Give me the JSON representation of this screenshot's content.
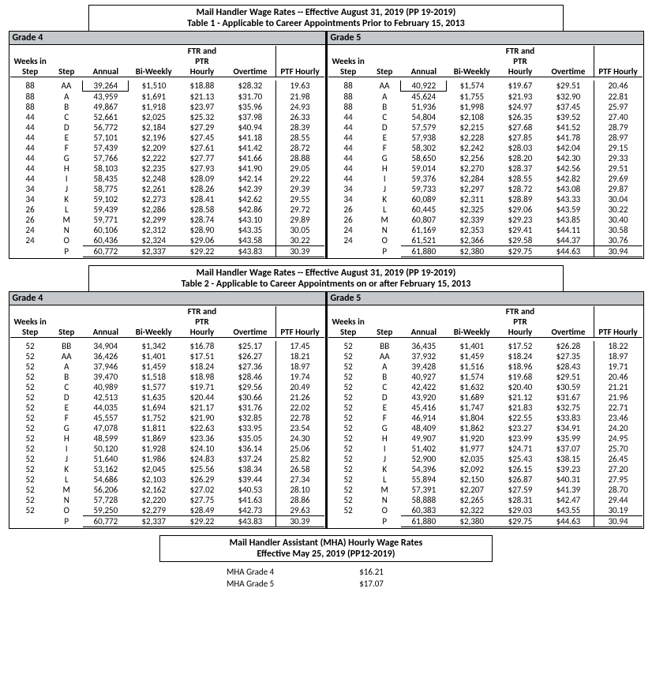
{
  "table1": {
    "title1": "Mail Handler Wage Rates -- Effective August 31, 2019 (PP 19-2019)",
    "title2": "Table 1 - Applicable to Career Appointments Prior to February 15, 2013",
    "cols": {
      "weeks": "Weeks in Step",
      "step": "Step",
      "annual": "Annual",
      "biweekly": "Bi-Weekly",
      "hourly": "FTR and PTR Hourly",
      "overtime": "Overtime",
      "ptf": "PTF Hourly"
    },
    "grade4": {
      "label": "Grade 4",
      "rows": [
        {
          "w": "88",
          "s": "AA",
          "a": "39,264",
          "b": "$1,510",
          "h": "$18.88",
          "o": "$28.32",
          "p": "19.63"
        },
        {
          "w": "88",
          "s": "A",
          "a": "43,959",
          "b": "$1,691",
          "h": "$21.13",
          "o": "$31.70",
          "p": "21.98"
        },
        {
          "w": "88",
          "s": "B",
          "a": "49,867",
          "b": "$1,918",
          "h": "$23.97",
          "o": "$35.96",
          "p": "24.93"
        },
        {
          "w": "44",
          "s": "C",
          "a": "52,661",
          "b": "$2,025",
          "h": "$25.32",
          "o": "$37.98",
          "p": "26.33"
        },
        {
          "w": "44",
          "s": "D",
          "a": "56,772",
          "b": "$2,184",
          "h": "$27.29",
          "o": "$40.94",
          "p": "28.39"
        },
        {
          "w": "44",
          "s": "E",
          "a": "57,101",
          "b": "$2,196",
          "h": "$27.45",
          "o": "$41.18",
          "p": "28.55"
        },
        {
          "w": "44",
          "s": "F",
          "a": "57,439",
          "b": "$2,209",
          "h": "$27.61",
          "o": "$41.42",
          "p": "28.72"
        },
        {
          "w": "44",
          "s": "G",
          "a": "57,766",
          "b": "$2,222",
          "h": "$27.77",
          "o": "$41.66",
          "p": "28.88"
        },
        {
          "w": "44",
          "s": "H",
          "a": "58,103",
          "b": "$2,235",
          "h": "$27.93",
          "o": "$41.90",
          "p": "29.05"
        },
        {
          "w": "44",
          "s": "I",
          "a": "58,435",
          "b": "$2,248",
          "h": "$28.09",
          "o": "$42.14",
          "p": "29.22"
        },
        {
          "w": "34",
          "s": "J",
          "a": "58,775",
          "b": "$2,261",
          "h": "$28.26",
          "o": "$42.39",
          "p": "29.39"
        },
        {
          "w": "34",
          "s": "K",
          "a": "59,102",
          "b": "$2,273",
          "h": "$28.41",
          "o": "$42.62",
          "p": "29.55"
        },
        {
          "w": "26",
          "s": "L",
          "a": "59,439",
          "b": "$2,286",
          "h": "$28.58",
          "o": "$42.86",
          "p": "29.72"
        },
        {
          "w": "26",
          "s": "M",
          "a": "59,771",
          "b": "$2,299",
          "h": "$28.74",
          "o": "$43.10",
          "p": "29.89"
        },
        {
          "w": "24",
          "s": "N",
          "a": "60,106",
          "b": "$2,312",
          "h": "$28.90",
          "o": "$43.35",
          "p": "30.05"
        },
        {
          "w": "24",
          "s": "O",
          "a": "60,436",
          "b": "$2,324",
          "h": "$29.06",
          "o": "$43.58",
          "p": "30.22"
        },
        {
          "w": "",
          "s": "P",
          "a": "60,772",
          "b": "$2,337",
          "h": "$29.22",
          "o": "$43.83",
          "p": "30.39"
        }
      ]
    },
    "grade5": {
      "label": "Grade 5",
      "rows": [
        {
          "w": "88",
          "s": "AA",
          "a": "40,922",
          "b": "$1,574",
          "h": "$19.67",
          "o": "$29.51",
          "p": "20.46"
        },
        {
          "w": "88",
          "s": "A",
          "a": "45,624",
          "b": "$1,755",
          "h": "$21.93",
          "o": "$32.90",
          "p": "22.81"
        },
        {
          "w": "88",
          "s": "B",
          "a": "51,936",
          "b": "$1,998",
          "h": "$24.97",
          "o": "$37.45",
          "p": "25.97"
        },
        {
          "w": "44",
          "s": "C",
          "a": "54,804",
          "b": "$2,108",
          "h": "$26.35",
          "o": "$39.52",
          "p": "27.40"
        },
        {
          "w": "44",
          "s": "D",
          "a": "57,579",
          "b": "$2,215",
          "h": "$27.68",
          "o": "$41.52",
          "p": "28.79"
        },
        {
          "w": "44",
          "s": "E",
          "a": "57,938",
          "b": "$2,228",
          "h": "$27.85",
          "o": "$41.78",
          "p": "28.97"
        },
        {
          "w": "44",
          "s": "F",
          "a": "58,302",
          "b": "$2,242",
          "h": "$28.03",
          "o": "$42.04",
          "p": "29.15"
        },
        {
          "w": "44",
          "s": "G",
          "a": "58,650",
          "b": "$2,256",
          "h": "$28.20",
          "o": "$42.30",
          "p": "29.33"
        },
        {
          "w": "44",
          "s": "H",
          "a": "59,014",
          "b": "$2,270",
          "h": "$28.37",
          "o": "$42.56",
          "p": "29.51"
        },
        {
          "w": "44",
          "s": "I",
          "a": "59,376",
          "b": "$2,284",
          "h": "$28.55",
          "o": "$42.82",
          "p": "29.69"
        },
        {
          "w": "34",
          "s": "J",
          "a": "59,733",
          "b": "$2,297",
          "h": "$28.72",
          "o": "$43.08",
          "p": "29.87"
        },
        {
          "w": "34",
          "s": "K",
          "a": "60,089",
          "b": "$2,311",
          "h": "$28.89",
          "o": "$43.33",
          "p": "30.04"
        },
        {
          "w": "26",
          "s": "L",
          "a": "60,445",
          "b": "$2,325",
          "h": "$29.06",
          "o": "$43.59",
          "p": "30.22"
        },
        {
          "w": "26",
          "s": "M",
          "a": "60,807",
          "b": "$2,339",
          "h": "$29.23",
          "o": "$43.85",
          "p": "30.40"
        },
        {
          "w": "24",
          "s": "N",
          "a": "61,169",
          "b": "$2,353",
          "h": "$29.41",
          "o": "$44.11",
          "p": "30.58"
        },
        {
          "w": "24",
          "s": "O",
          "a": "61,521",
          "b": "$2,366",
          "h": "$29.58",
          "o": "$44.37",
          "p": "30.76"
        },
        {
          "w": "",
          "s": "P",
          "a": "61,880",
          "b": "$2,380",
          "h": "$29.75",
          "o": "$44.63",
          "p": "30.94"
        }
      ]
    }
  },
  "table2": {
    "title1": "Mail Handler Wage Rates -- Effective August 31, 2019 (PP 19-2019)",
    "title2": "Table 2 - Applicable to Career Appointments on or after February 15, 2013",
    "grade4": {
      "label": "Grade 4",
      "rows": [
        {
          "w": "52",
          "s": "BB",
          "a": "34,904",
          "b": "$1,342",
          "h": "$16.78",
          "o": "$25.17",
          "p": "17.45"
        },
        {
          "w": "52",
          "s": "AA",
          "a": "36,426",
          "b": "$1,401",
          "h": "$17.51",
          "o": "$26.27",
          "p": "18.21"
        },
        {
          "w": "52",
          "s": "A",
          "a": "37,946",
          "b": "$1,459",
          "h": "$18.24",
          "o": "$27.36",
          "p": "18.97"
        },
        {
          "w": "52",
          "s": "B",
          "a": "39,470",
          "b": "$1,518",
          "h": "$18.98",
          "o": "$28.46",
          "p": "19.74"
        },
        {
          "w": "52",
          "s": "C",
          "a": "40,989",
          "b": "$1,577",
          "h": "$19.71",
          "o": "$29.56",
          "p": "20.49"
        },
        {
          "w": "52",
          "s": "D",
          "a": "42,513",
          "b": "$1,635",
          "h": "$20.44",
          "o": "$30.66",
          "p": "21.26"
        },
        {
          "w": "52",
          "s": "E",
          "a": "44,035",
          "b": "$1,694",
          "h": "$21.17",
          "o": "$31.76",
          "p": "22.02"
        },
        {
          "w": "52",
          "s": "F",
          "a": "45,557",
          "b": "$1,752",
          "h": "$21.90",
          "o": "$32.85",
          "p": "22.78"
        },
        {
          "w": "52",
          "s": "G",
          "a": "47,078",
          "b": "$1,811",
          "h": "$22.63",
          "o": "$33.95",
          "p": "23.54"
        },
        {
          "w": "52",
          "s": "H",
          "a": "48,599",
          "b": "$1,869",
          "h": "$23.36",
          "o": "$35.05",
          "p": "24.30"
        },
        {
          "w": "52",
          "s": "I",
          "a": "50,120",
          "b": "$1,928",
          "h": "$24.10",
          "o": "$36.14",
          "p": "25.06"
        },
        {
          "w": "52",
          "s": "J",
          "a": "51,640",
          "b": "$1,986",
          "h": "$24.83",
          "o": "$37.24",
          "p": "25.82"
        },
        {
          "w": "52",
          "s": "K",
          "a": "53,162",
          "b": "$2,045",
          "h": "$25.56",
          "o": "$38.34",
          "p": "26.58"
        },
        {
          "w": "52",
          "s": "L",
          "a": "54,686",
          "b": "$2,103",
          "h": "$26.29",
          "o": "$39.44",
          "p": "27.34"
        },
        {
          "w": "52",
          "s": "M",
          "a": "56,206",
          "b": "$2,162",
          "h": "$27.02",
          "o": "$40.53",
          "p": "28.10"
        },
        {
          "w": "52",
          "s": "N",
          "a": "57,728",
          "b": "$2,220",
          "h": "$27.75",
          "o": "$41.63",
          "p": "28.86"
        },
        {
          "w": "52",
          "s": "O",
          "a": "59,250",
          "b": "$2,279",
          "h": "$28.49",
          "o": "$42.73",
          "p": "29.63"
        },
        {
          "w": "",
          "s": "P",
          "a": "60,772",
          "b": "$2,337",
          "h": "$29.22",
          "o": "$43.83",
          "p": "30.39"
        }
      ]
    },
    "grade5": {
      "label": "Grade 5",
      "rows": [
        {
          "w": "52",
          "s": "BB",
          "a": "36,435",
          "b": "$1,401",
          "h": "$17.52",
          "o": "$26.28",
          "p": "18.22"
        },
        {
          "w": "52",
          "s": "AA",
          "a": "37,932",
          "b": "$1,459",
          "h": "$18.24",
          "o": "$27.35",
          "p": "18.97"
        },
        {
          "w": "52",
          "s": "A",
          "a": "39,428",
          "b": "$1,516",
          "h": "$18.96",
          "o": "$28.43",
          "p": "19.71"
        },
        {
          "w": "52",
          "s": "B",
          "a": "40,927",
          "b": "$1,574",
          "h": "$19.68",
          "o": "$29.51",
          "p": "20.46"
        },
        {
          "w": "52",
          "s": "C",
          "a": "42,422",
          "b": "$1,632",
          "h": "$20.40",
          "o": "$30.59",
          "p": "21.21"
        },
        {
          "w": "52",
          "s": "D",
          "a": "43,920",
          "b": "$1,689",
          "h": "$21.12",
          "o": "$31.67",
          "p": "21.96"
        },
        {
          "w": "52",
          "s": "E",
          "a": "45,416",
          "b": "$1,747",
          "h": "$21.83",
          "o": "$32.75",
          "p": "22.71"
        },
        {
          "w": "52",
          "s": "F",
          "a": "46,914",
          "b": "$1,804",
          "h": "$22.55",
          "o": "$33.83",
          "p": "23.46"
        },
        {
          "w": "52",
          "s": "G",
          "a": "48,409",
          "b": "$1,862",
          "h": "$23.27",
          "o": "$34.91",
          "p": "24.20"
        },
        {
          "w": "52",
          "s": "H",
          "a": "49,907",
          "b": "$1,920",
          "h": "$23.99",
          "o": "$35.99",
          "p": "24.95"
        },
        {
          "w": "52",
          "s": "I",
          "a": "51,402",
          "b": "$1,977",
          "h": "$24.71",
          "o": "$37.07",
          "p": "25.70"
        },
        {
          "w": "52",
          "s": "J",
          "a": "52,900",
          "b": "$2,035",
          "h": "$25.43",
          "o": "$38.15",
          "p": "26.45"
        },
        {
          "w": "52",
          "s": "K",
          "a": "54,396",
          "b": "$2,092",
          "h": "$26.15",
          "o": "$39.23",
          "p": "27.20"
        },
        {
          "w": "52",
          "s": "L",
          "a": "55,894",
          "b": "$2,150",
          "h": "$26.87",
          "o": "$40.31",
          "p": "27.95"
        },
        {
          "w": "52",
          "s": "M",
          "a": "57,391",
          "b": "$2,207",
          "h": "$27.59",
          "o": "$41.39",
          "p": "28.70"
        },
        {
          "w": "52",
          "s": "N",
          "a": "58,888",
          "b": "$2,265",
          "h": "$28.31",
          "o": "$42.47",
          "p": "29.44"
        },
        {
          "w": "52",
          "s": "O",
          "a": "60,383",
          "b": "$2,322",
          "h": "$29.03",
          "o": "$43.55",
          "p": "30.19"
        },
        {
          "w": "",
          "s": "P",
          "a": "61,880",
          "b": "$2,380",
          "h": "$29.75",
          "o": "$44.63",
          "p": "30.94"
        }
      ]
    }
  },
  "mha": {
    "title1": "Mail Handler Assistant (MHA) Hourly Wage Rates",
    "title2": "Effective May 25, 2019 (PP12-2019)",
    "rows": [
      {
        "label": "MHA Grade 4",
        "rate": "$16.21"
      },
      {
        "label": "MHA Grade 5",
        "rate": "$17.07"
      }
    ]
  }
}
